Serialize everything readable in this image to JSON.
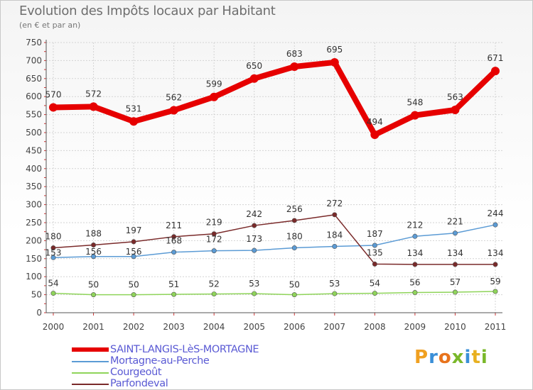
{
  "title": "Evolution des Impôts locaux par Habitant",
  "subtitle": "(en € et par an)",
  "logo": {
    "letters": [
      "P",
      "r",
      "o",
      "x",
      "i",
      "t",
      "i"
    ],
    "colors": [
      "#f0a020",
      "#3a8fd8",
      "#e8731c",
      "#7ab82a",
      "#3a8fd8",
      "#e8b020",
      "#7ab82a"
    ]
  },
  "chart_data": {
    "type": "line",
    "x": [
      "2000",
      "2001",
      "2002",
      "2003",
      "2004",
      "2005",
      "2006",
      "2007",
      "2008",
      "2009",
      "2010",
      "2011"
    ],
    "ylim": [
      0,
      750
    ],
    "yticks": [
      "0",
      "50",
      "100",
      "150",
      "200",
      "250",
      "300",
      "350",
      "400",
      "450",
      "500",
      "550",
      "600",
      "650",
      "700",
      "750"
    ],
    "ytick_values": [
      0,
      50,
      100,
      150,
      200,
      250,
      300,
      350,
      400,
      450,
      500,
      550,
      600,
      650,
      700,
      750
    ],
    "grid": true,
    "legend_position": "bottom-left",
    "series": [
      {
        "name": "SAINT-LANGIS-LèS-MORTAGNE",
        "color": "#e60000",
        "values": [
          570,
          572,
          531,
          562,
          599,
          650,
          683,
          695,
          494,
          548,
          563,
          671
        ],
        "labels": [
          "570",
          "572",
          "531",
          "562",
          "599",
          "650",
          "683",
          "695",
          "494",
          "548",
          "563",
          "671"
        ]
      },
      {
        "name": "Mortagne-au-Perche",
        "color": "#5b9bd5",
        "values": [
          153,
          156,
          156,
          168,
          172,
          173,
          180,
          184,
          187,
          212,
          221,
          244
        ],
        "labels": [
          "153",
          "156",
          "156",
          "168",
          "172",
          "173",
          "180",
          "184",
          "187",
          "212",
          "221",
          "244"
        ]
      },
      {
        "name": "Courgeoût",
        "color": "#8fd45a",
        "values": [
          54,
          50,
          50,
          51,
          52,
          53,
          50,
          53,
          54,
          56,
          57,
          59
        ],
        "labels": [
          "54",
          "50",
          "50",
          "51",
          "52",
          "53",
          "50",
          "53",
          "54",
          "56",
          "57",
          "59"
        ]
      },
      {
        "name": "Parfondeval",
        "color": "#7a2a2a",
        "values": [
          180,
          188,
          197,
          211,
          219,
          242,
          256,
          272,
          135,
          134,
          134,
          134
        ],
        "labels": [
          "180",
          "188",
          "197",
          "211",
          "219",
          "242",
          "256",
          "272",
          "135",
          "134",
          "134",
          "134"
        ]
      }
    ]
  }
}
